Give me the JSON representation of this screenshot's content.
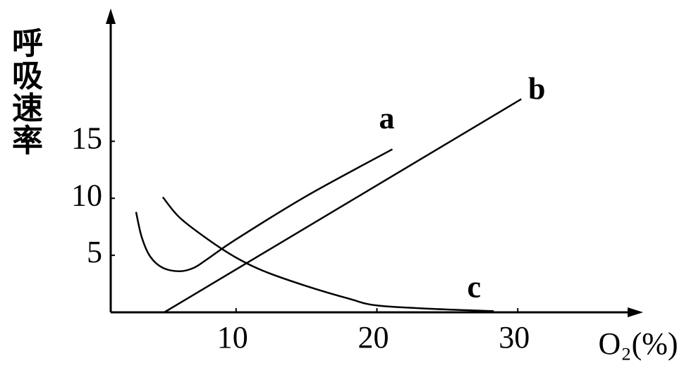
{
  "chart_data": {
    "type": "line",
    "y_label": "呼吸速率",
    "x_label": "O₂(%)",
    "xlim": [
      1.1,
      38.8
    ],
    "ylim": [
      0,
      26.4
    ],
    "xticks": [
      10,
      20,
      30
    ],
    "yticks": [
      5,
      10,
      15
    ],
    "series": [
      {
        "name": "a",
        "color": "#000000",
        "x": [
          2.9,
          3.3,
          3.9,
          4.8,
          6,
          7,
          8,
          10,
          15,
          21.1
        ],
        "values": [
          8.8,
          6.6,
          4.9,
          3.9,
          3.6,
          3.9,
          4.7,
          6.4,
          10.2,
          14.3
        ]
      },
      {
        "name": "b",
        "color": "#000000",
        "x": [
          4.9,
          30.25
        ],
        "values": [
          0,
          18.7
        ]
      },
      {
        "name": "c",
        "color": "#000000",
        "x": [
          4.8,
          6,
          8,
          10,
          12,
          15,
          18,
          20,
          24,
          28.3
        ],
        "values": [
          10.1,
          8.3,
          6.4,
          4.8,
          3.6,
          2.3,
          1.2,
          0.6,
          0.3,
          0.1
        ]
      }
    ]
  }
}
